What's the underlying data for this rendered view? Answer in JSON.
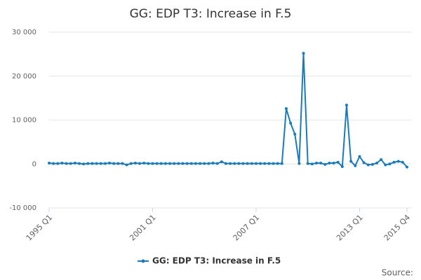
{
  "chart_data": {
    "type": "line",
    "title": "GG: EDP T3: Increase in F.5",
    "categories": [
      "1995 Q1",
      null,
      null,
      null,
      null,
      null,
      null,
      null,
      null,
      null,
      null,
      null,
      null,
      null,
      null,
      null,
      null,
      null,
      null,
      null,
      null,
      null,
      null,
      null,
      "2001 Q1",
      null,
      null,
      null,
      null,
      null,
      null,
      null,
      null,
      null,
      null,
      null,
      null,
      null,
      null,
      null,
      null,
      null,
      null,
      null,
      null,
      null,
      null,
      null,
      "2007 Q1",
      null,
      null,
      null,
      null,
      null,
      null,
      null,
      null,
      null,
      null,
      null,
      null,
      null,
      null,
      null,
      null,
      null,
      null,
      null,
      null,
      null,
      null,
      null,
      "2013 Q1",
      null,
      null,
      null,
      null,
      null,
      null,
      null,
      null,
      null,
      null,
      "2015 Q4"
    ],
    "series": [
      {
        "name": "GG: EDP T3: Increase in F.5",
        "color": "#1a7bb9",
        "values": [
          200,
          100,
          100,
          200,
          100,
          100,
          200,
          100,
          0,
          100,
          100,
          100,
          100,
          100,
          200,
          100,
          100,
          100,
          -200,
          100,
          200,
          100,
          200,
          100,
          100,
          100,
          100,
          100,
          100,
          100,
          100,
          100,
          100,
          100,
          100,
          100,
          100,
          100,
          200,
          100,
          500,
          100,
          100,
          100,
          100,
          100,
          100,
          100,
          100,
          100,
          100,
          100,
          100,
          100,
          100,
          12600,
          9300,
          6800,
          100,
          25200,
          100,
          0,
          200,
          200,
          -100,
          200,
          200,
          400,
          -600,
          13400,
          600,
          -400,
          1700,
          300,
          -200,
          -100,
          200,
          1000,
          -200,
          0,
          400,
          600,
          400,
          -700
        ]
      }
    ],
    "ylim": [
      -10000,
      30000
    ],
    "yticks": [
      {
        "value": -10000,
        "label": "-10 000"
      },
      0,
      {
        "value": 10000,
        "label": "10 000"
      },
      {
        "value": 20000,
        "label": "20 000"
      },
      {
        "value": 30000,
        "label": "30 000"
      }
    ],
    "grid": true,
    "legend": "bottom",
    "source": "Source:"
  }
}
